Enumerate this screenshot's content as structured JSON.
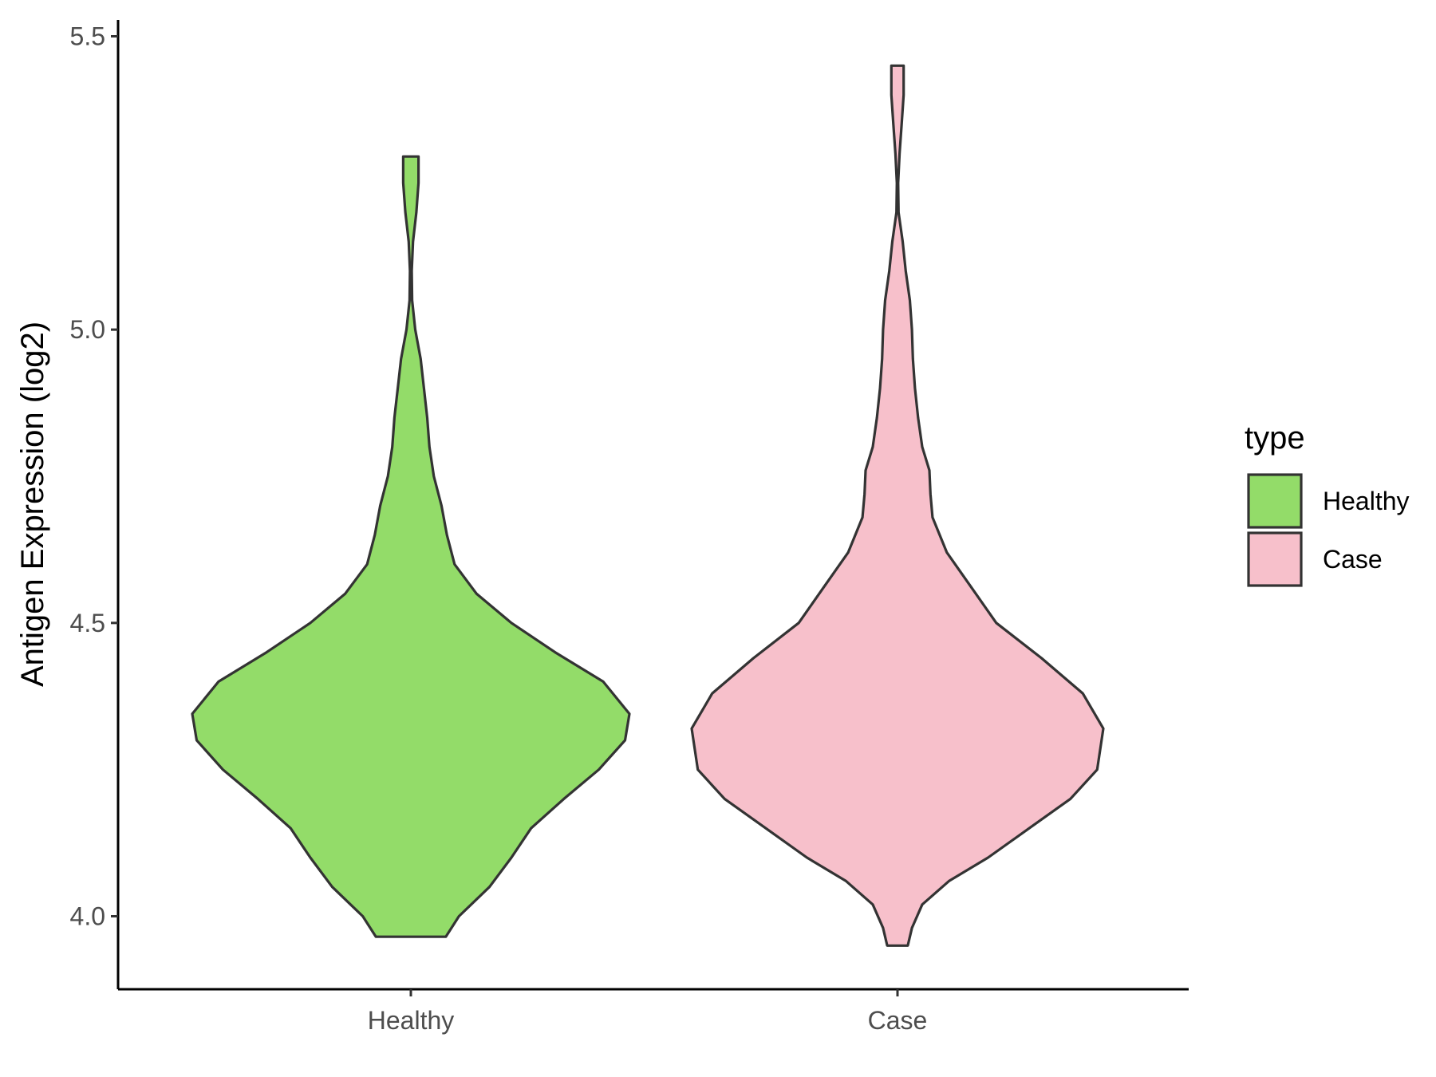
{
  "chart_data": {
    "type": "violin",
    "title": "",
    "xlabel": "",
    "ylabel": "Antigen Expression (log2)",
    "ylim": [
      3.86,
      5.53
    ],
    "yticks": [
      "4.0",
      "4.5",
      "5.0",
      "5.5"
    ],
    "ytick_values": [
      4.0,
      4.5,
      5.0,
      5.5
    ],
    "categories": [
      "Healthy",
      "Case"
    ],
    "grid": false,
    "legend": {
      "title": "type",
      "placement": "right",
      "entries": [
        {
          "label": "Healthy",
          "color": "#93DC69"
        },
        {
          "label": "Case",
          "color": "#F7C0CB"
        }
      ]
    },
    "series": [
      {
        "name": "Healthy",
        "color": "#93DC69",
        "y_min": 3.965,
        "y_max": 5.295,
        "density_profile": [
          [
            3.965,
            0.16
          ],
          [
            4.0,
            0.22
          ],
          [
            4.05,
            0.36
          ],
          [
            4.1,
            0.46
          ],
          [
            4.15,
            0.55
          ],
          [
            4.2,
            0.7
          ],
          [
            4.25,
            0.86
          ],
          [
            4.3,
            0.98
          ],
          [
            4.345,
            1.0
          ],
          [
            4.4,
            0.88
          ],
          [
            4.45,
            0.66
          ],
          [
            4.5,
            0.46
          ],
          [
            4.55,
            0.3
          ],
          [
            4.6,
            0.2
          ],
          [
            4.65,
            0.165
          ],
          [
            4.7,
            0.14
          ],
          [
            4.75,
            0.105
          ],
          [
            4.8,
            0.085
          ],
          [
            4.85,
            0.075
          ],
          [
            4.9,
            0.06
          ],
          [
            4.95,
            0.045
          ],
          [
            5.0,
            0.02
          ],
          [
            5.05,
            0.006
          ],
          [
            5.1,
            0.004
          ],
          [
            5.15,
            0.01
          ],
          [
            5.2,
            0.025
          ],
          [
            5.25,
            0.035
          ],
          [
            5.295,
            0.035
          ]
        ]
      },
      {
        "name": "Case",
        "color": "#F7C0CB",
        "y_min": 3.95,
        "y_max": 5.45,
        "density_profile": [
          [
            3.95,
            0.05
          ],
          [
            3.98,
            0.07
          ],
          [
            4.02,
            0.12
          ],
          [
            4.06,
            0.25
          ],
          [
            4.1,
            0.44
          ],
          [
            4.15,
            0.64
          ],
          [
            4.2,
            0.84
          ],
          [
            4.25,
            0.97
          ],
          [
            4.32,
            1.0
          ],
          [
            4.38,
            0.9
          ],
          [
            4.44,
            0.7
          ],
          [
            4.5,
            0.48
          ],
          [
            4.56,
            0.36
          ],
          [
            4.62,
            0.24
          ],
          [
            4.68,
            0.17
          ],
          [
            4.72,
            0.16
          ],
          [
            4.76,
            0.155
          ],
          [
            4.8,
            0.12
          ],
          [
            4.85,
            0.1
          ],
          [
            4.9,
            0.085
          ],
          [
            4.95,
            0.075
          ],
          [
            5.0,
            0.07
          ],
          [
            5.05,
            0.06
          ],
          [
            5.1,
            0.04
          ],
          [
            5.15,
            0.025
          ],
          [
            5.2,
            0.005
          ],
          [
            5.25,
            0.003
          ],
          [
            5.3,
            0.01
          ],
          [
            5.35,
            0.02
          ],
          [
            5.4,
            0.03
          ],
          [
            5.45,
            0.03
          ]
        ]
      }
    ]
  }
}
